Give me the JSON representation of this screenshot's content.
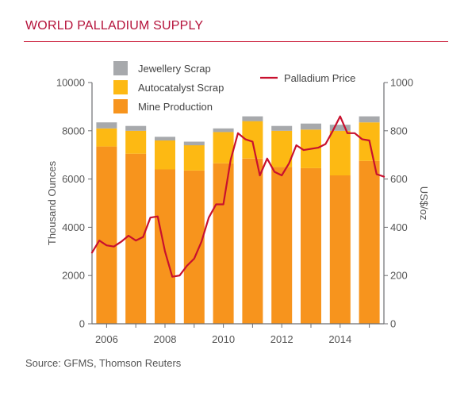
{
  "title": "WORLD PALLADIUM SUPPLY",
  "source": "Source: GFMS, Thomson Reuters",
  "colors": {
    "title": "#b5123a",
    "mine": "#f7941d",
    "autocatalyst": "#fdb913",
    "jewellery": "#a7a9ac",
    "price": "#c8102e",
    "axis": "#6d6e71"
  },
  "chart_data": {
    "type": "bar",
    "stacked": true,
    "categories": [
      "2006",
      "2007",
      "2008",
      "2009",
      "2010",
      "2011",
      "2012",
      "2013",
      "2014",
      "2015"
    ],
    "x_tick_labels": [
      "2006",
      "2008",
      "2010",
      "2012",
      "2014"
    ],
    "series": [
      {
        "name": "Mine Production",
        "values": [
          7350,
          7050,
          6400,
          6350,
          6650,
          6850,
          6500,
          6450,
          6150,
          6750
        ]
      },
      {
        "name": "Autocatalyst Scrap",
        "values": [
          750,
          950,
          1200,
          1050,
          1300,
          1550,
          1500,
          1600,
          1850,
          1600
        ]
      },
      {
        "name": "Jewellery Scrap",
        "values": [
          250,
          200,
          150,
          150,
          150,
          200,
          200,
          250,
          250,
          250
        ]
      }
    ],
    "price_series": {
      "name": "Palladium Price",
      "axis": "right",
      "x": [
        2005.5,
        2005.75,
        2006.0,
        2006.25,
        2006.5,
        2006.75,
        2007.0,
        2007.25,
        2007.5,
        2007.75,
        2008.0,
        2008.25,
        2008.5,
        2008.75,
        2009.0,
        2009.25,
        2009.5,
        2009.75,
        2010.0,
        2010.25,
        2010.5,
        2010.75,
        2011.0,
        2011.25,
        2011.5,
        2011.75,
        2012.0,
        2012.25,
        2012.5,
        2012.75,
        2013.0,
        2013.25,
        2013.5,
        2013.75,
        2014.0,
        2014.25,
        2014.5,
        2014.75,
        2015.0,
        2015.25,
        2015.5
      ],
      "values": [
        295,
        345,
        325,
        320,
        340,
        365,
        345,
        360,
        440,
        445,
        300,
        195,
        200,
        240,
        270,
        340,
        440,
        495,
        495,
        680,
        790,
        765,
        755,
        615,
        685,
        630,
        615,
        665,
        740,
        720,
        725,
        730,
        745,
        800,
        860,
        790,
        790,
        765,
        760,
        620,
        610
      ]
    },
    "ylabel": "Thousand Ounces",
    "ylabel_right": "US$/oz",
    "ylim": [
      0,
      10000
    ],
    "yticks": [
      0,
      2000,
      4000,
      6000,
      8000,
      10000
    ],
    "ylim_right": [
      0,
      1000
    ],
    "yticks_right": [
      0,
      200,
      400,
      600,
      800,
      1000
    ],
    "xlim": [
      2005.5,
      2015.5
    ],
    "legend": [
      "Jewellery Scrap",
      "Autocatalyst Scrap",
      "Mine Production",
      "Palladium Price"
    ],
    "legend_position": "top",
    "grid": false
  }
}
